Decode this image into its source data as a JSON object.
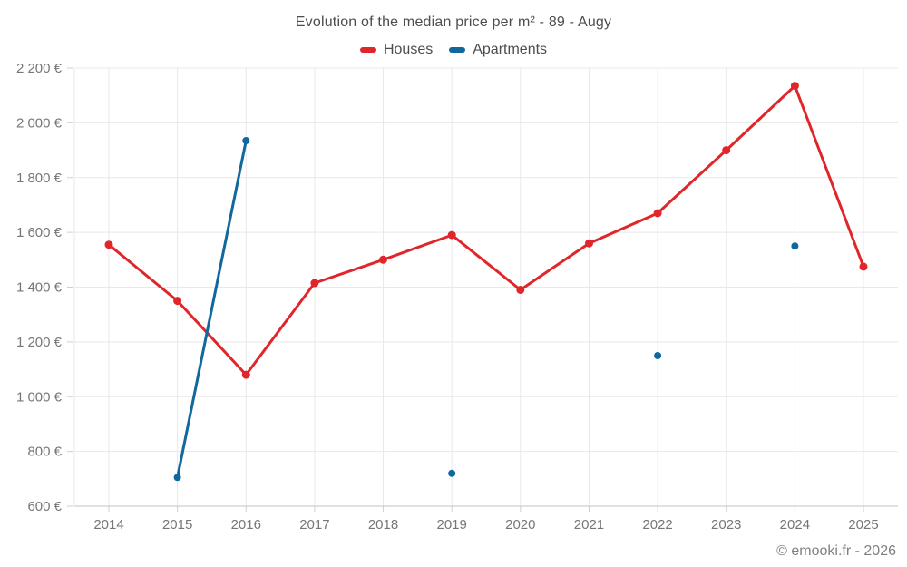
{
  "title": "Evolution of the median price per m² - 89 - Augy",
  "footer": {
    "copyright": "© emooki.fr - 2026"
  },
  "colors": {
    "houses": "#e0262b",
    "apartments": "#10689d",
    "grid": "#e8e8e8",
    "axis": "#cfcfcf",
    "tick_text": "#767676"
  },
  "chart_data": {
    "type": "line",
    "title": "Evolution of the median price per m² - 89 - Augy",
    "x": [
      2014,
      2015,
      2016,
      2017,
      2018,
      2019,
      2020,
      2021,
      2022,
      2023,
      2024,
      2025
    ],
    "series": [
      {
        "name": "Houses",
        "color": "#e0262b",
        "values": [
          1555,
          1350,
          1080,
          1415,
          1500,
          1590,
          1390,
          1560,
          1670,
          1900,
          2135,
          1475
        ]
      },
      {
        "name": "Apartments",
        "color": "#10689d",
        "values": [
          null,
          705,
          1935,
          null,
          null,
          720,
          null,
          null,
          1150,
          null,
          1550,
          null
        ]
      }
    ],
    "xlabel": "",
    "ylabel": "",
    "yunit": "€",
    "ylim": [
      600,
      2200
    ],
    "ytick_step": 200,
    "grid": true,
    "legend_position": "top"
  }
}
